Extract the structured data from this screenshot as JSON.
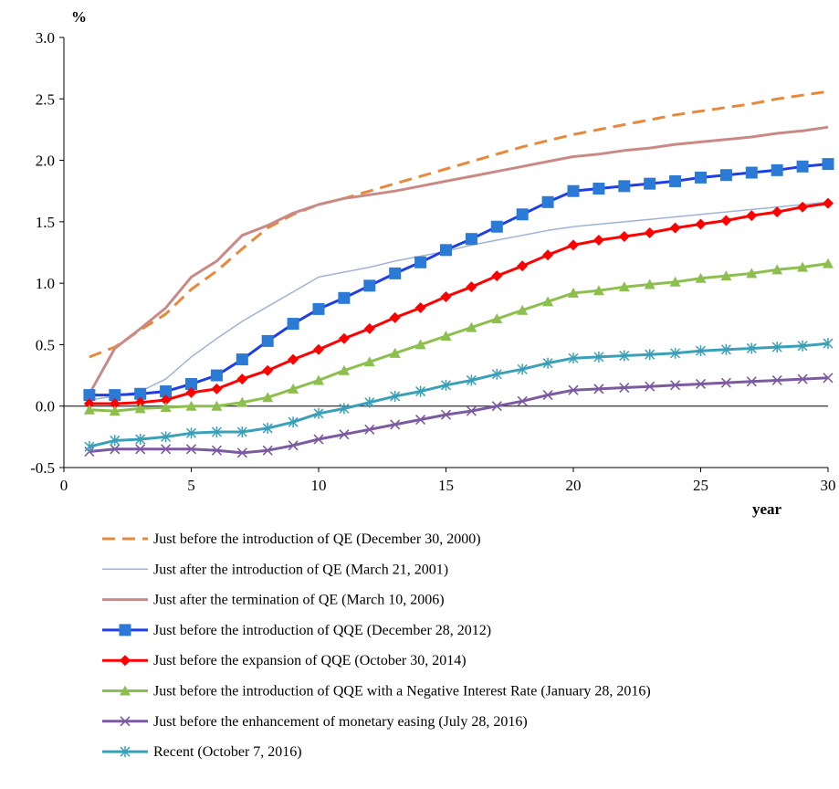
{
  "chart_data": {
    "type": "line",
    "ylabel": "%",
    "xlabel": "year",
    "xlim": [
      0,
      30
    ],
    "ylim": [
      -0.5,
      3.0
    ],
    "xticks": [
      0,
      5,
      10,
      15,
      20,
      25,
      30
    ],
    "yticks": [
      3.0,
      2.5,
      2.0,
      1.5,
      1.0,
      0.5,
      0.0,
      -0.5
    ],
    "xtick_labels": [
      "0",
      "5",
      "10",
      "15",
      "20",
      "25",
      "30"
    ],
    "ytick_labels": [
      "3.0",
      "2.5",
      "2.0",
      "1.5",
      "1.0",
      "0.5",
      "0.0",
      "-0.5"
    ],
    "grid": false,
    "legend_position": "bottom",
    "series": [
      {
        "name": "Just before the introduction of QE (December 30, 2000)",
        "color": "#e8883a",
        "style": "dashed",
        "marker": "none",
        "x": [
          1,
          2,
          3,
          4,
          5,
          6,
          7,
          8,
          9,
          10,
          11,
          12,
          13,
          14,
          15,
          16,
          17,
          18,
          19,
          20,
          21,
          22,
          23,
          24,
          25,
          26,
          27,
          28,
          29,
          30
        ],
        "values": [
          0.4,
          0.48,
          0.62,
          0.75,
          0.95,
          1.1,
          1.28,
          1.45,
          1.56,
          1.64,
          1.69,
          1.75,
          1.81,
          1.87,
          1.93,
          1.99,
          2.05,
          2.11,
          2.16,
          2.21,
          2.25,
          2.29,
          2.33,
          2.37,
          2.4,
          2.43,
          2.46,
          2.5,
          2.53,
          2.56
        ]
      },
      {
        "name": "Just after the introduction of QE (March 21, 2001)",
        "color": "#9fb3d8",
        "style": "solid",
        "marker": "none",
        "x": [
          1,
          2,
          3,
          4,
          5,
          6,
          7,
          8,
          9,
          10,
          11,
          12,
          13,
          14,
          15,
          16,
          17,
          18,
          19,
          20,
          21,
          22,
          23,
          24,
          25,
          26,
          27,
          28,
          29,
          30
        ],
        "values": [
          0.05,
          0.08,
          0.12,
          0.22,
          0.4,
          0.55,
          0.69,
          0.81,
          0.93,
          1.05,
          1.09,
          1.13,
          1.18,
          1.22,
          1.26,
          1.31,
          1.35,
          1.39,
          1.43,
          1.46,
          1.48,
          1.5,
          1.52,
          1.54,
          1.56,
          1.58,
          1.6,
          1.62,
          1.64,
          1.66
        ]
      },
      {
        "name": "Just after the termination of QE (March 10, 2006)",
        "color": "#c98a86",
        "style": "solid",
        "marker": "none",
        "x": [
          1,
          2,
          3,
          4,
          5,
          6,
          7,
          8,
          9,
          10,
          11,
          12,
          13,
          14,
          15,
          16,
          17,
          18,
          19,
          20,
          21,
          22,
          23,
          24,
          25,
          26,
          27,
          28,
          29,
          30
        ],
        "values": [
          0.1,
          0.47,
          0.63,
          0.8,
          1.05,
          1.18,
          1.39,
          1.47,
          1.57,
          1.64,
          1.69,
          1.72,
          1.75,
          1.79,
          1.83,
          1.87,
          1.91,
          1.95,
          1.99,
          2.03,
          2.05,
          2.08,
          2.1,
          2.13,
          2.15,
          2.17,
          2.19,
          2.22,
          2.24,
          2.27
        ]
      },
      {
        "name": "Just before the introduction of QQE (December 28, 2012)",
        "color": "#1f3ee6",
        "marker_color": "#2a7ad6",
        "style": "solid",
        "marker": "square",
        "x": [
          1,
          2,
          3,
          4,
          5,
          6,
          7,
          8,
          9,
          10,
          11,
          12,
          13,
          14,
          15,
          16,
          17,
          18,
          19,
          20,
          21,
          22,
          23,
          24,
          25,
          26,
          27,
          28,
          29,
          30
        ],
        "values": [
          0.09,
          0.09,
          0.1,
          0.12,
          0.18,
          0.25,
          0.38,
          0.53,
          0.67,
          0.79,
          0.88,
          0.98,
          1.08,
          1.17,
          1.27,
          1.36,
          1.46,
          1.56,
          1.66,
          1.75,
          1.77,
          1.79,
          1.81,
          1.83,
          1.86,
          1.88,
          1.9,
          1.92,
          1.95,
          1.97
        ]
      },
      {
        "name": "Just before the expansion of QQE (October 30, 2014)",
        "color": "#ff0000",
        "style": "solid",
        "marker": "diamond",
        "x": [
          1,
          2,
          3,
          4,
          5,
          6,
          7,
          8,
          9,
          10,
          11,
          12,
          13,
          14,
          15,
          16,
          17,
          18,
          19,
          20,
          21,
          22,
          23,
          24,
          25,
          26,
          27,
          28,
          29,
          30
        ],
        "values": [
          0.02,
          0.02,
          0.03,
          0.05,
          0.11,
          0.14,
          0.22,
          0.29,
          0.38,
          0.46,
          0.55,
          0.63,
          0.72,
          0.8,
          0.89,
          0.97,
          1.06,
          1.14,
          1.23,
          1.31,
          1.35,
          1.38,
          1.41,
          1.45,
          1.48,
          1.51,
          1.55,
          1.58,
          1.62,
          1.65
        ]
      },
      {
        "name": "Just before the introduction of QQE with a Negative Interest Rate (January 28, 2016)",
        "color": "#8cbf4e",
        "style": "solid",
        "marker": "triangle",
        "x": [
          1,
          2,
          3,
          4,
          5,
          6,
          7,
          8,
          9,
          10,
          11,
          12,
          13,
          14,
          15,
          16,
          17,
          18,
          19,
          20,
          21,
          22,
          23,
          24,
          25,
          26,
          27,
          28,
          29,
          30
        ],
        "values": [
          -0.03,
          -0.04,
          -0.02,
          -0.01,
          0.0,
          0.0,
          0.03,
          0.07,
          0.14,
          0.21,
          0.29,
          0.36,
          0.43,
          0.5,
          0.57,
          0.64,
          0.71,
          0.78,
          0.85,
          0.92,
          0.94,
          0.97,
          0.99,
          1.01,
          1.04,
          1.06,
          1.08,
          1.11,
          1.13,
          1.16
        ]
      },
      {
        "name": "Just before the enhancement of monetary easing (July 28, 2016)",
        "color": "#7b5aa0",
        "style": "solid",
        "marker": "x",
        "x": [
          1,
          2,
          3,
          4,
          5,
          6,
          7,
          8,
          9,
          10,
          11,
          12,
          13,
          14,
          15,
          16,
          17,
          18,
          19,
          20,
          21,
          22,
          23,
          24,
          25,
          26,
          27,
          28,
          29,
          30
        ],
        "values": [
          -0.37,
          -0.35,
          -0.35,
          -0.35,
          -0.35,
          -0.36,
          -0.38,
          -0.36,
          -0.32,
          -0.27,
          -0.23,
          -0.19,
          -0.15,
          -0.11,
          -0.07,
          -0.04,
          0.0,
          0.04,
          0.09,
          0.13,
          0.14,
          0.15,
          0.16,
          0.17,
          0.18,
          0.19,
          0.2,
          0.21,
          0.22,
          0.23
        ]
      },
      {
        "name": "Recent (October 7, 2016)",
        "color": "#3aa0b8",
        "style": "solid",
        "marker": "asterisk",
        "x": [
          1,
          2,
          3,
          4,
          5,
          6,
          7,
          8,
          9,
          10,
          11,
          12,
          13,
          14,
          15,
          16,
          17,
          18,
          19,
          20,
          21,
          22,
          23,
          24,
          25,
          26,
          27,
          28,
          29,
          30
        ],
        "values": [
          -0.33,
          -0.28,
          -0.27,
          -0.25,
          -0.22,
          -0.21,
          -0.21,
          -0.18,
          -0.13,
          -0.06,
          -0.02,
          0.03,
          0.08,
          0.12,
          0.17,
          0.21,
          0.26,
          0.3,
          0.35,
          0.39,
          0.4,
          0.41,
          0.42,
          0.43,
          0.45,
          0.46,
          0.47,
          0.48,
          0.49,
          0.51
        ]
      }
    ]
  }
}
